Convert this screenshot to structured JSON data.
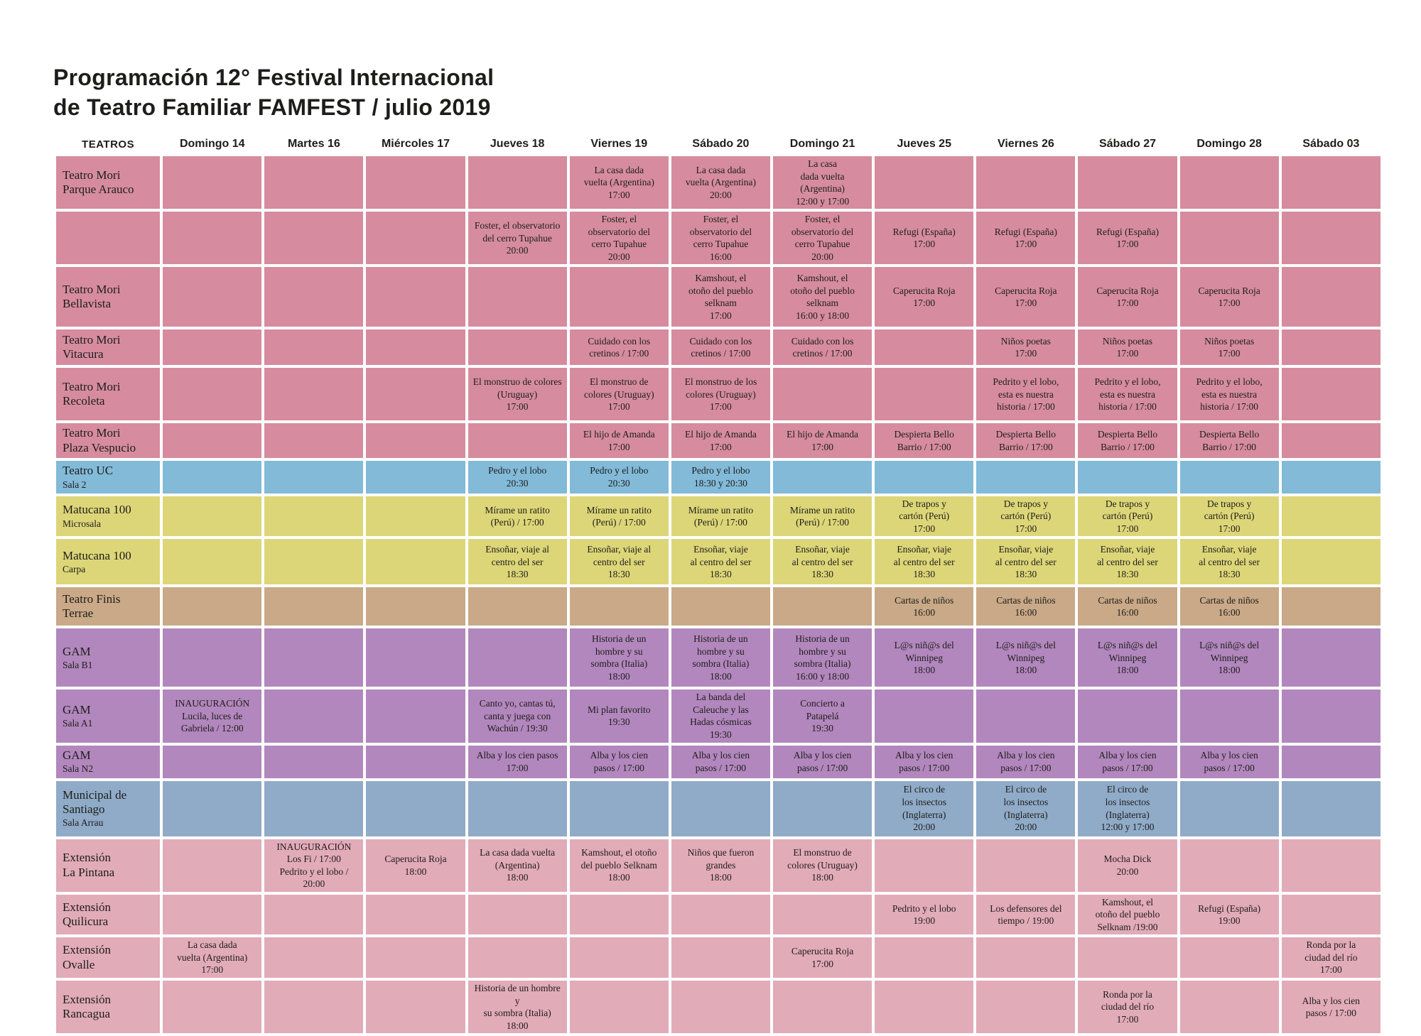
{
  "title": {
    "line1": "Programación 12° Festival Internacional",
    "line2": "de Teatro Familiar FAMFEST / julio 2019"
  },
  "columns": [
    "TEATROS",
    "Domingo 14",
    "Martes 16",
    "Miércoles 17",
    "Jueves 18",
    "Viernes 19",
    "Sábado 20",
    "Domingo 21",
    "Jueves 25",
    "Viernes 26",
    "Sábado 27",
    "Domingo 28",
    "Sábado 03"
  ],
  "colors": {
    "mori": "#d68c9e",
    "uc": "#82bad8",
    "matucana": "#ddd678",
    "finis": "#c9a987",
    "gam": "#b287bd",
    "municipal": "#90abc8",
    "extension": "#e2abb8",
    "text": "#1d1d1b",
    "background": "#ffffff"
  },
  "rows": [
    {
      "name": "Teatro Mori\nParque Arauco",
      "sub": "",
      "color": "mori",
      "cells": [
        "",
        "",
        "",
        "",
        "La casa dada\nvuelta (Argentina)\n17:00",
        "La casa dada\nvuelta (Argentina)\n20:00",
        "La casa\ndada vuelta\n(Argentina)\n12:00 y 17:00",
        "",
        "",
        "",
        "",
        ""
      ]
    },
    {
      "name": "",
      "sub": "",
      "color": "mori",
      "cells": [
        "",
        "",
        "",
        "Foster, el observatorio\ndel cerro Tupahue\n20:00",
        "Foster, el\nobservatorio del\ncerro Tupahue\n20:00",
        "Foster, el\nobservatorio del\ncerro Tupahue\n16:00",
        "Foster, el\nobservatorio del\ncerro Tupahue\n20:00",
        "Refugi (España)\n17:00",
        "Refugi (España)\n17:00",
        "Refugi (España)\n17:00",
        "",
        ""
      ]
    },
    {
      "name": "Teatro Mori\nBellavista",
      "sub": "",
      "color": "mori",
      "cells": [
        "",
        "",
        "",
        "",
        "",
        "Kamshout, el\notoño del pueblo\nselknam\n17:00",
        "Kamshout, el\notoño del pueblo\nselknam\n16:00 y 18:00",
        "Caperucita Roja\n17:00",
        "Caperucita Roja\n17:00",
        "Caperucita Roja\n17:00",
        "Caperucita Roja\n17:00",
        ""
      ]
    },
    {
      "name": "Teatro Mori\nVitacura",
      "sub": "",
      "color": "mori",
      "cells": [
        "",
        "",
        "",
        "",
        "Cuidado con los\ncretinos / 17:00",
        "Cuidado con los\ncretinos / 17:00",
        "Cuidado con los\ncretinos / 17:00",
        "",
        "Niños poetas\n17:00",
        "Niños poetas\n17:00",
        "Niños poetas\n17:00",
        ""
      ]
    },
    {
      "name": "Teatro Mori\nRecoleta",
      "sub": "",
      "color": "mori",
      "cells": [
        "",
        "",
        "",
        "El monstruo de colores\n(Uruguay)\n17:00",
        "El monstruo de\ncolores (Uruguay)\n17:00",
        "El monstruo de los\ncolores (Uruguay)\n17:00",
        "",
        "",
        "Pedrito y el lobo,\nesta es nuestra\nhistoria / 17:00",
        "Pedrito y el lobo,\nesta es nuestra\nhistoria / 17:00",
        "Pedrito y el lobo,\nesta es nuestra\nhistoria / 17:00",
        ""
      ]
    },
    {
      "name": "Teatro Mori\nPlaza Vespucio",
      "sub": "",
      "color": "mori",
      "cells": [
        "",
        "",
        "",
        "",
        "El hijo de Amanda\n17:00",
        "El hijo de Amanda\n17:00",
        "El hijo de Amanda\n17:00",
        "Despierta Bello\nBarrio / 17:00",
        "Despierta Bello\nBarrio / 17:00",
        "Despierta Bello\nBarrio / 17:00",
        "Despierta Bello\nBarrio / 17:00",
        ""
      ]
    },
    {
      "name": "Teatro UC",
      "sub": "Sala 2",
      "color": "uc",
      "cells": [
        "",
        "",
        "",
        "Pedro y el lobo\n20:30",
        "Pedro y el lobo\n20:30",
        "Pedro y el lobo\n18:30 y 20:30",
        "",
        "",
        "",
        "",
        "",
        ""
      ]
    },
    {
      "name": "Matucana 100",
      "sub": "Microsala",
      "color": "matucana",
      "cells": [
        "",
        "",
        "",
        "Mírame un ratito\n(Perú) / 17:00",
        "Mírame un ratito\n(Perú) / 17:00",
        "Mírame un ratito\n(Perú) / 17:00",
        "Mírame un ratito\n(Perú) / 17:00",
        "De trapos y\ncartón (Perú)\n17:00",
        "De trapos y\ncartón (Perú)\n17:00",
        "De trapos y\ncartón (Perú)\n17:00",
        "De trapos y\ncartón (Perú)\n17:00",
        ""
      ]
    },
    {
      "name": "Matucana 100",
      "sub": "Carpa",
      "color": "matucana",
      "cells": [
        "",
        "",
        "",
        "Ensoñar, viaje al\ncentro del ser\n18:30",
        "Ensoñar, viaje al\ncentro del ser\n18:30",
        "Ensoñar, viaje\nal centro del ser\n18:30",
        "Ensoñar, viaje\nal centro del ser\n18:30",
        "Ensoñar, viaje\nal centro del ser\n18:30",
        "Ensoñar, viaje\nal centro del ser\n18:30",
        "Ensoñar, viaje\nal centro del ser\n18:30",
        "Ensoñar, viaje\nal centro del ser\n18:30",
        ""
      ]
    },
    {
      "name": "Teatro Finis\nTerrae",
      "sub": "",
      "color": "finis",
      "cells": [
        "",
        "",
        "",
        "",
        "",
        "",
        "",
        "Cartas de niños\n16:00",
        "Cartas de niños\n16:00",
        "Cartas de niños\n16:00",
        "Cartas de niños\n16:00",
        ""
      ]
    },
    {
      "name": "GAM",
      "sub": "Sala B1",
      "color": "gam",
      "cells": [
        "",
        "",
        "",
        "",
        "Historia de un\nhombre y su\nsombra (Italia)\n18:00",
        "Historia de un\nhombre y su\nsombra (Italia)\n18:00",
        "Historia de un\nhombre y su\nsombra (Italia)\n16:00 y 18:00",
        "L@s niñ@s del\nWinnipeg\n18:00",
        "L@s niñ@s del\nWinnipeg\n18:00",
        "L@s niñ@s del\nWinnipeg\n18:00",
        "L@s niñ@s del\nWinnipeg\n18:00",
        ""
      ]
    },
    {
      "name": "GAM",
      "sub": "Sala A1",
      "color": "gam",
      "cells": [
        "INAUGURACIÓN\nLucila, luces de\nGabriela / 12:00",
        "",
        "",
        "Canto yo, cantas tú,\ncanta y juega con\nWachún / 19:30",
        "Mi plan favorito\n19:30",
        "La banda del\nCaleuche y las\nHadas cósmicas\n19:30",
        "Concierto a\nPatapelá\n19:30",
        "",
        "",
        "",
        "",
        ""
      ]
    },
    {
      "name": "GAM",
      "sub": "Sala N2",
      "color": "gam",
      "cells": [
        "",
        "",
        "",
        "Alba y los cien pasos\n17:00",
        "Alba y los cien\npasos / 17:00",
        "Alba y los cien\npasos / 17:00",
        "Alba y los cien\npasos / 17:00",
        "Alba y los cien\npasos / 17:00",
        "Alba y los cien\npasos / 17:00",
        "Alba y los cien\npasos / 17:00",
        "Alba y los cien\npasos / 17:00",
        ""
      ]
    },
    {
      "name": "Municipal de\nSantiago",
      "sub": "Sala Arrau",
      "color": "municipal",
      "cells": [
        "",
        "",
        "",
        "",
        "",
        "",
        "",
        "El circo de\nlos insectos\n(Inglaterra)\n20:00",
        "El circo de\nlos insectos\n(Inglaterra)\n20:00",
        "El circo de\nlos insectos\n(Inglaterra)\n12:00 y 17:00",
        "",
        ""
      ]
    },
    {
      "name": "Extensión\nLa Pintana",
      "sub": "",
      "color": "extension",
      "cells": [
        "",
        "INAUGURACIÓN\nLos Fi / 17:00\nPedrito y el lobo / 20:00",
        "Caperucita Roja\n18:00",
        "La casa dada vuelta\n(Argentina)\n18:00",
        "Kamshout, el otoño\ndel pueblo Selknam\n18:00",
        "Niños que fueron\ngrandes\n18:00",
        "El monstruo de\ncolores (Uruguay)\n18:00",
        "",
        "",
        "Mocha Dick\n20:00",
        "",
        ""
      ]
    },
    {
      "name": "Extensión\nQuilicura",
      "sub": "",
      "color": "extension",
      "cells": [
        "",
        "",
        "",
        "",
        "",
        "",
        "",
        "Pedrito y el lobo\n19:00",
        "Los defensores del\ntiempo / 19:00",
        "Kamshout, el\notoño del pueblo\nSelknam /19:00",
        "Refugi (España)\n19:00",
        ""
      ]
    },
    {
      "name": "Extensión\nOvalle",
      "sub": "",
      "color": "extension",
      "cells": [
        "La casa dada\nvuelta (Argentina)\n17:00",
        "",
        "",
        "",
        "",
        "",
        "Caperucita Roja\n17:00",
        "",
        "",
        "",
        "",
        "Ronda por la\nciudad del río\n17:00"
      ]
    },
    {
      "name": "Extensión\nRancagua",
      "sub": "",
      "color": "extension",
      "cells": [
        "",
        "",
        "",
        "Historia de un hombre y\nsu sombra (Italia)\n18:00",
        "",
        "",
        "",
        "",
        "",
        "Ronda por la\nciudad del río\n17:00",
        "",
        "Alba y los cien\npasos / 17:00"
      ]
    }
  ]
}
